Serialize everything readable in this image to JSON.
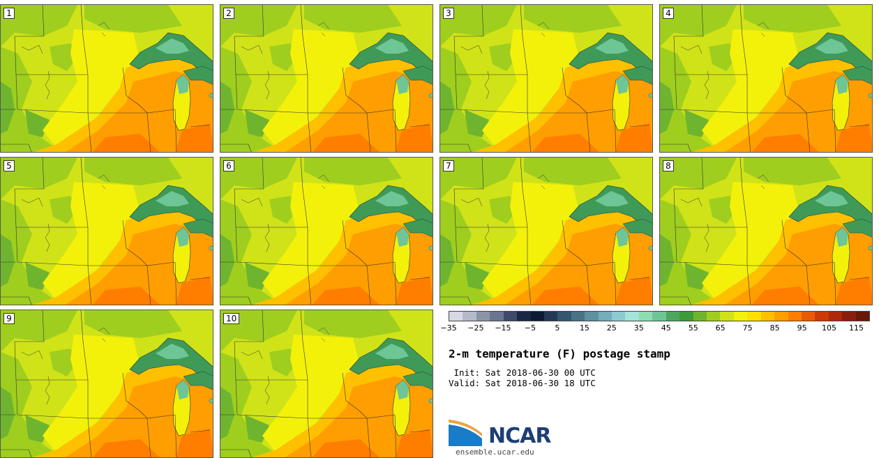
{
  "panels": [
    {
      "label": "1"
    },
    {
      "label": "2"
    },
    {
      "label": "3"
    },
    {
      "label": "4"
    },
    {
      "label": "5"
    },
    {
      "label": "6"
    },
    {
      "label": "7"
    },
    {
      "label": "8"
    },
    {
      "label": "9"
    },
    {
      "label": "10"
    }
  ],
  "colorbar": {
    "colors": [
      "#d5d9e2",
      "#b4bac7",
      "#8c95a8",
      "#6a7590",
      "#3e4a68",
      "#1a2744",
      "#0c1a33",
      "#223a55",
      "#34566e",
      "#4a7287",
      "#5e90a2",
      "#74adbc",
      "#8ccbd2",
      "#a4e2da",
      "#8fdcb2",
      "#6ec596",
      "#4ea65e",
      "#3f9a3a",
      "#6fb42e",
      "#9fce1e",
      "#cfe318",
      "#f3f10a",
      "#ffe000",
      "#ffc000",
      "#ff9e00",
      "#ff7e00",
      "#e85a06",
      "#cc3a08",
      "#ac2a0a",
      "#8a1e0c",
      "#6a1608"
    ],
    "tick_labels": [
      "−35",
      "−25",
      "−15",
      "−5",
      "5",
      "15",
      "25",
      "35",
      "45",
      "55",
      "65",
      "75",
      "85",
      "95",
      "105",
      "115"
    ]
  },
  "map_palette": {
    "lake": "#3f9a58",
    "lake_light": "#6ec596",
    "green_dark": "#6fb42e",
    "green": "#9fce1e",
    "yellow_green": "#cfe318",
    "yellow": "#f3f10a",
    "light_orange": "#ffc000",
    "orange": "#ff9e00",
    "dark_orange": "#ff7e00"
  },
  "title": "2-m temperature (F) postage stamp",
  "init_line": " Init: Sat 2018-06-30 00 UTC",
  "valid_line": "Valid: Sat 2018-06-30 18 UTC",
  "logo": {
    "name": "NCAR",
    "url": "ensemble.ucar.edu"
  }
}
